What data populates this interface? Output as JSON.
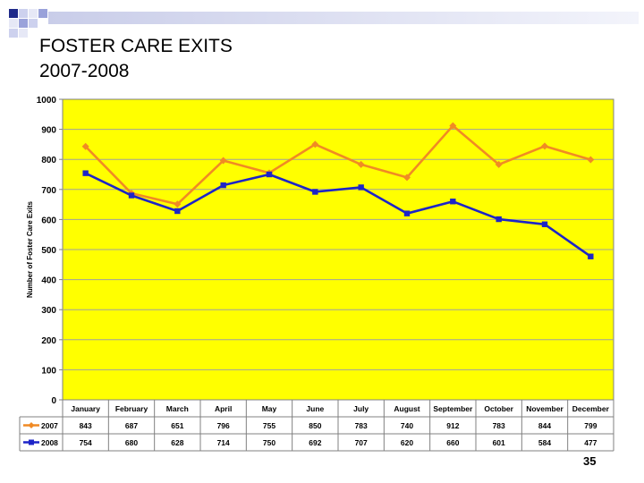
{
  "slide": {
    "title_line1": "FOSTER CARE EXITS",
    "title_line2": "2007-2008",
    "page_number": "35"
  },
  "colors": {
    "plot_bg": "#ffff00",
    "series_2007": "#f08a24",
    "series_2008": "#1d24c8",
    "deco_dark": "#1f2a8a",
    "deco_light": "#b7bde3"
  },
  "chart_data": {
    "type": "line",
    "title": "",
    "xlabel": "",
    "ylabel": "Number of Foster Care Exits",
    "ylim": [
      0,
      1000
    ],
    "yticks": [
      0,
      100,
      200,
      300,
      400,
      500,
      600,
      700,
      800,
      900,
      1000
    ],
    "grid": true,
    "categories": [
      "January",
      "February",
      "March",
      "April",
      "May",
      "June",
      "July",
      "August",
      "September",
      "October",
      "November",
      "December"
    ],
    "series": [
      {
        "name": "2007",
        "marker": "diamond",
        "values": [
          843,
          687,
          651,
          796,
          755,
          850,
          783,
          740,
          912,
          783,
          844,
          799
        ]
      },
      {
        "name": "2008",
        "marker": "square",
        "values": [
          754,
          680,
          628,
          714,
          750,
          692,
          707,
          620,
          660,
          601,
          584,
          477
        ]
      }
    ],
    "data_table": true
  }
}
